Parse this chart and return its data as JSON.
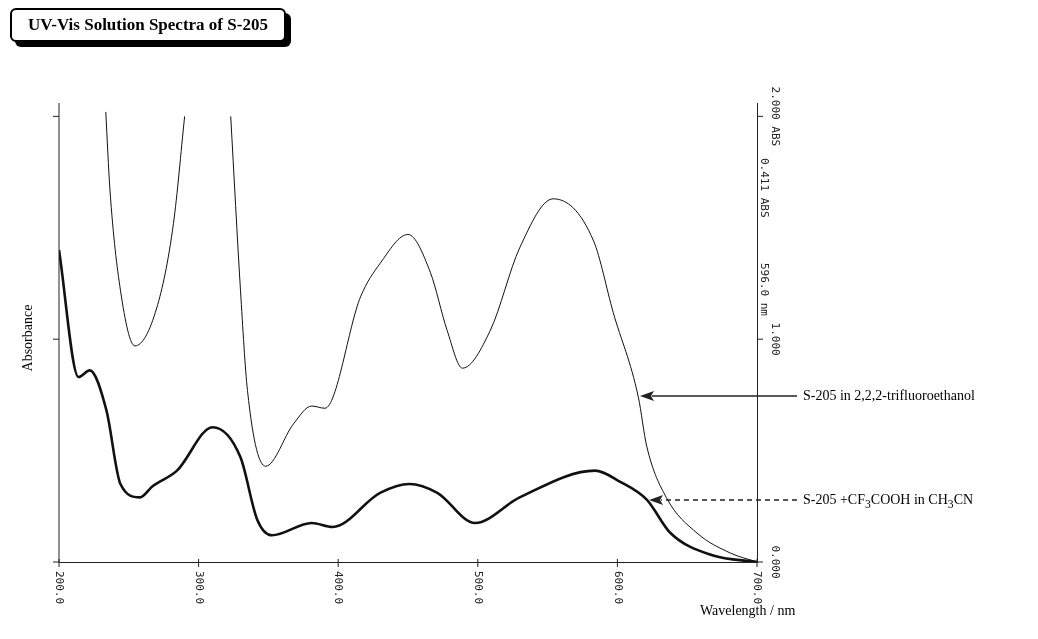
{
  "chart_data": {
    "type": "line",
    "title": "UV-Vis Solution Spectra of S-205",
    "xlabel": "Wavelength / nm",
    "ylabel": "Absorbance",
    "xlim": [
      200,
      700
    ],
    "xticks": [
      {
        "value": 200,
        "label": "200.0"
      },
      {
        "value": 300,
        "label": "300.0"
      },
      {
        "value": 400,
        "label": "400.0"
      },
      {
        "value": 500,
        "label": "500.0"
      },
      {
        "value": 600,
        "label": "600.0"
      },
      {
        "value": 700,
        "label": "700.0"
      }
    ],
    "ylim": [
      0,
      2.06
    ],
    "yticks": [
      {
        "value": 0,
        "label": "0.000"
      },
      {
        "value": 1,
        "label": "1.000"
      },
      {
        "value": 2,
        "label": "2.000 ABS"
      }
    ],
    "grid": false,
    "legend": false,
    "marker": "none",
    "line_style": "solid",
    "series": [
      {
        "name": "S-205 in 2,2,2-trifluoroethanol",
        "color": "#111111",
        "x": [
          233.5,
          236.5,
          244,
          254.4,
          270,
          282,
          290,
          305,
          323,
          330,
          335,
          348,
          368,
          381,
          390.5,
          416,
          430,
          450,
          466,
          478,
          489,
          509,
          530,
          554,
          583,
          597,
          615,
          621,
          635,
          657,
          681,
          700
        ],
        "values": [
          2.02,
          1.67,
          1.22,
          0.97,
          1.14,
          1.52,
          2.0,
          null,
          2.0,
          1.22,
          0.77,
          0.43,
          0.62,
          0.7,
          0.69,
          1.19,
          1.34,
          1.47,
          1.3,
          1.04,
          0.87,
          1.04,
          1.41,
          1.63,
          1.44,
          1.12,
          0.74,
          0.52,
          0.29,
          0.13,
          0.04,
          0
        ]
      },
      {
        "name": "S-205 +CF$_{3}$COOH in CH$_{3}$CN",
        "color": "#111111",
        "x": [
          200,
          214,
          222,
          234,
          244,
          258,
          267,
          284.5,
          310,
          330,
          342,
          352.5,
          381,
          396,
          430,
          451,
          471,
          498,
          530,
          584,
          602,
          621,
          638,
          668,
          700
        ],
        "values": [
          1.4,
          0.83,
          0.86,
          0.68,
          0.35,
          0.29,
          0.34,
          0.41,
          0.605,
          0.47,
          0.19,
          0.12,
          0.175,
          0.157,
          0.31,
          0.35,
          0.31,
          0.175,
          0.29,
          0.41,
          0.36,
          0.28,
          0.13,
          0.03,
          0
        ]
      }
    ],
    "annotations": [
      "0.411 ABS",
      "596.0 nm"
    ]
  }
}
